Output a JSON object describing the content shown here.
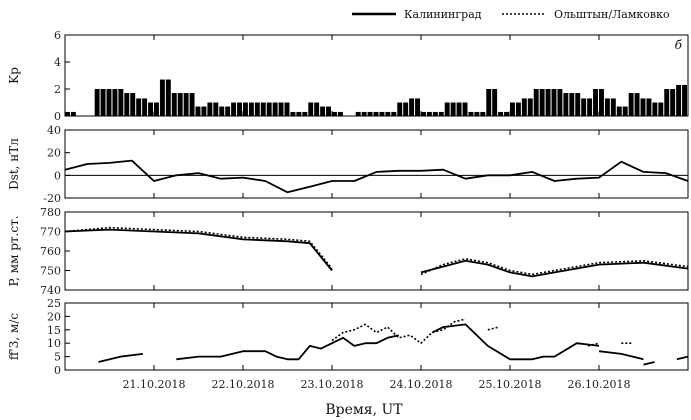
{
  "legend": {
    "series1": "Калининград",
    "series2": "Ольштын/Ламковко"
  },
  "xlabel": "Время, UT",
  "panel_label": "б",
  "date_ticks": [
    "21.10.2018",
    "22.10.2018",
    "23.10.2018",
    "24.10.2018",
    "25.10.2018",
    "26.10.2018"
  ],
  "chart_data": [
    {
      "type": "bar",
      "ylabel": "Kp",
      "ylim": [
        0,
        6
      ],
      "yticks": [
        0,
        2,
        4,
        6
      ],
      "x_start": "2018-10-20T00:00",
      "interval_hours": 3,
      "values": [
        0.3,
        0.3,
        0,
        0,
        0,
        2,
        2,
        2,
        2,
        2,
        1.7,
        1.7,
        1.3,
        1.3,
        1,
        1,
        2.7,
        2.7,
        1.7,
        1.7,
        1.7,
        1.7,
        0.7,
        0.7,
        1,
        1,
        0.7,
        0.7,
        1,
        1,
        1,
        1,
        1,
        1,
        1,
        1,
        1,
        1,
        0.3,
        0.3,
        0.3,
        1,
        1,
        0.7,
        0.7,
        0.3,
        0.3,
        0,
        0,
        0.3,
        0.3,
        0.3,
        0.3,
        0.3,
        0.3,
        0.3,
        1,
        1,
        1.3,
        1.3,
        0.3,
        0.3,
        0.3,
        0.3,
        1,
        1,
        1,
        1,
        0.3,
        0.3,
        0.3,
        2,
        2,
        0.3,
        0.3,
        1,
        1,
        1.3,
        1.3,
        2,
        2,
        2,
        2,
        2,
        1.7,
        1.7,
        1.7,
        1.3,
        1.3,
        2,
        2,
        1.3,
        1.3,
        0.7,
        0.7,
        1.7,
        1.7,
        1.3,
        1.3,
        1,
        1,
        2,
        2,
        2.3,
        2.3
      ]
    },
    {
      "type": "line",
      "ylabel": "Dst, нТл",
      "ylim": [
        -20,
        40
      ],
      "yticks": [
        -20,
        0,
        20,
        40
      ],
      "reference_line": 0,
      "series": [
        {
          "name": "",
          "x": [
            "2018-10-20T00:00",
            "2018-10-20T06:00",
            "2018-10-20T12:00",
            "2018-10-20T18:00",
            "2018-10-21T00:00",
            "2018-10-21T06:00",
            "2018-10-21T12:00",
            "2018-10-21T18:00",
            "2018-10-22T00:00",
            "2018-10-22T06:00",
            "2018-10-22T12:00",
            "2018-10-22T18:00",
            "2018-10-23T00:00",
            "2018-10-23T06:00",
            "2018-10-23T12:00",
            "2018-10-23T18:00",
            "2018-10-24T00:00",
            "2018-10-24T06:00",
            "2018-10-24T12:00",
            "2018-10-24T18:00",
            "2018-10-25T00:00",
            "2018-10-25T06:00",
            "2018-10-25T12:00",
            "2018-10-25T18:00",
            "2018-10-26T00:00",
            "2018-10-26T06:00",
            "2018-10-26T12:00",
            "2018-10-26T18:00",
            "2018-10-27T00:00"
          ],
          "values": [
            5,
            10,
            11,
            13,
            -5,
            0,
            2,
            -3,
            -2,
            -5,
            -15,
            -10,
            -5,
            -5,
            3,
            4,
            4,
            5,
            -3,
            0,
            0,
            3,
            -5,
            -3,
            -2,
            12,
            3,
            2,
            -5
          ]
        }
      ]
    },
    {
      "type": "line",
      "ylabel": "P, мм рт.ст.",
      "ylim": [
        740,
        780
      ],
      "yticks": [
        740,
        750,
        760,
        770,
        780
      ],
      "series": [
        {
          "name": "Калининград",
          "segments": [
            {
              "x": [
                "2018-10-20T00:00",
                "2018-10-20T12:00",
                "2018-10-21T00:00",
                "2018-10-21T12:00",
                "2018-10-22T00:00",
                "2018-10-22T12:00",
                "2018-10-22T18:00",
                "2018-10-23T00:00"
              ],
              "values": [
                770,
                771,
                770,
                769,
                766,
                765,
                764,
                750
              ]
            },
            {
              "x": [
                "2018-10-24T00:00",
                "2018-10-24T06:00",
                "2018-10-24T12:00",
                "2018-10-24T18:00",
                "2018-10-25T00:00",
                "2018-10-25T06:00",
                "2018-10-25T12:00",
                "2018-10-26T00:00",
                "2018-10-26T12:00",
                "2018-10-27T00:00"
              ],
              "values": [
                749,
                752,
                755,
                753,
                749,
                747,
                749,
                753,
                754,
                751
              ]
            }
          ]
        },
        {
          "name": "Ольштын/Ламковко",
          "segments": [
            {
              "x": [
                "2018-10-20T00:00",
                "2018-10-20T12:00",
                "2018-10-21T00:00",
                "2018-10-21T12:00",
                "2018-10-22T00:00",
                "2018-10-22T12:00",
                "2018-10-22T18:00",
                "2018-10-23T00:00"
              ],
              "values": [
                770,
                772,
                771,
                770,
                767,
                766,
                765,
                751
              ]
            },
            {
              "x": [
                "2018-10-24T00:00",
                "2018-10-24T06:00",
                "2018-10-24T12:00",
                "2018-10-24T18:00",
                "2018-10-25T00:00",
                "2018-10-25T06:00",
                "2018-10-25T12:00",
                "2018-10-26T00:00",
                "2018-10-26T12:00",
                "2018-10-27T00:00"
              ],
              "values": [
                748,
                753,
                756,
                754,
                750,
                748,
                750,
                754,
                755,
                752
              ]
            }
          ]
        }
      ]
    },
    {
      "type": "line",
      "ylabel": "ff'3, м/с",
      "ylim": [
        0,
        25
      ],
      "yticks": [
        0,
        5,
        10,
        15,
        20,
        25
      ],
      "series": [
        {
          "name": "Калининград",
          "segments": [
            {
              "x": [
                "2018-10-20T09:00",
                "2018-10-20T15:00",
                "2018-10-20T21:00"
              ],
              "values": [
                3,
                5,
                6
              ]
            },
            {
              "x": [
                "2018-10-21T06:00",
                "2018-10-21T12:00",
                "2018-10-21T18:00",
                "2018-10-22T00:00",
                "2018-10-22T06:00",
                "2018-10-22T09:00",
                "2018-10-22T12:00",
                "2018-10-22T15:00",
                "2018-10-22T18:00",
                "2018-10-22T21:00",
                "2018-10-23T00:00",
                "2018-10-23T03:00",
                "2018-10-23T06:00",
                "2018-10-23T09:00",
                "2018-10-23T12:00",
                "2018-10-23T15:00",
                "2018-10-23T18:00"
              ],
              "values": [
                4,
                5,
                5,
                7,
                7,
                5,
                4,
                4,
                9,
                8,
                10,
                12,
                9,
                10,
                10,
                12,
                13
              ]
            },
            {
              "x": [
                "2018-10-24T03:00",
                "2018-10-24T06:00",
                "2018-10-24T12:00",
                "2018-10-24T18:00",
                "2018-10-25T00:00",
                "2018-10-25T06:00",
                "2018-10-25T09:00",
                "2018-10-25T12:00",
                "2018-10-25T18:00",
                "2018-10-26T00:00"
              ],
              "values": [
                14,
                16,
                17,
                9,
                4,
                4,
                5,
                5,
                10,
                9
              ]
            },
            {
              "x": [
                "2018-10-26T00:00",
                "2018-10-26T06:00",
                "2018-10-26T12:00"
              ],
              "values": [
                7,
                6,
                4
              ]
            },
            {
              "x": [
                "2018-10-26T12:00",
                "2018-10-26T15:00"
              ],
              "values": [
                2,
                3
              ]
            },
            {
              "x": [
                "2018-10-26T21:00",
                "2018-10-27T00:00"
              ],
              "values": [
                4,
                5
              ]
            }
          ]
        },
        {
          "name": "Ольштын/Ламковко",
          "segments": [
            {
              "x": [
                "2018-10-23T00:00",
                "2018-10-23T03:00",
                "2018-10-23T06:00",
                "2018-10-23T09:00",
                "2018-10-23T12:00",
                "2018-10-23T15:00",
                "2018-10-23T18:00",
                "2018-10-23T21:00",
                "2018-10-24T00:00",
                "2018-10-24T03:00",
                "2018-10-24T06:00",
                "2018-10-24T09:00",
                "2018-10-24T12:00"
              ],
              "values": [
                11,
                14,
                15,
                17,
                14,
                16,
                12,
                13,
                10,
                14,
                15,
                18,
                19
              ]
            },
            {
              "x": [
                "2018-10-24T18:00",
                "2018-10-24T21:00"
              ],
              "values": [
                15,
                16
              ]
            },
            {
              "x": [
                "2018-10-25T21:00",
                "2018-10-26T00:00"
              ],
              "values": [
                9,
                10
              ]
            },
            {
              "x": [
                "2018-10-26T06:00",
                "2018-10-26T09:00"
              ],
              "values": [
                10,
                10
              ]
            }
          ]
        }
      ]
    }
  ]
}
